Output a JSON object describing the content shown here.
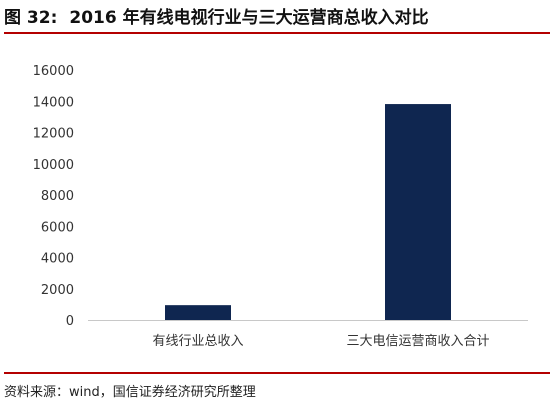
{
  "figure": {
    "label": "图 32:",
    "title": "2016 年有线电视行业与三大运营商总收入对比"
  },
  "source": "资料来源：wind，国信证券经济研究所整理",
  "colors": {
    "bar": "#0f2650",
    "accent_rule": "#b40000"
  },
  "chart_data": {
    "type": "bar",
    "categories": [
      "有线行业总收入",
      "三大电信运营商收入合计"
    ],
    "values": [
      950,
      13820
    ],
    "ylim": [
      0,
      16000
    ],
    "yticks": [
      "0",
      "2000",
      "4000",
      "6000",
      "8000",
      "10000",
      "12000",
      "14000",
      "16000"
    ],
    "grid": false,
    "legend": "none"
  }
}
